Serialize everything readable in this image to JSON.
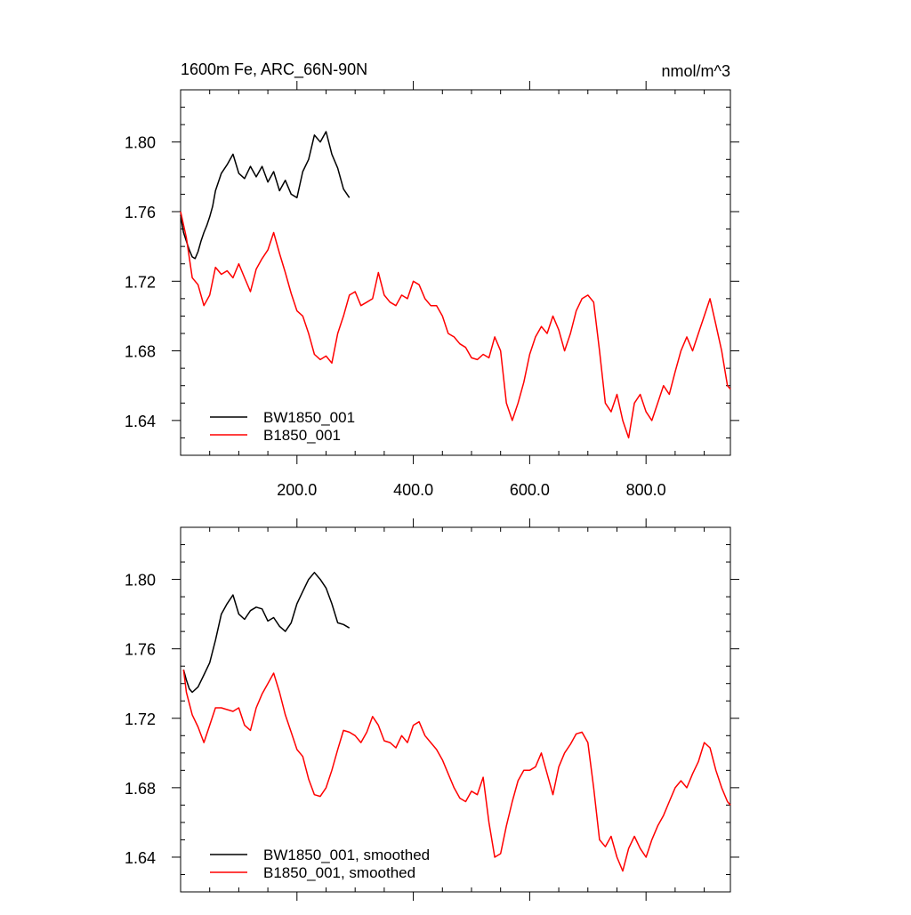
{
  "figure": {
    "title_left": "1600m Fe, ARC_66N-90N",
    "title_right": "nmol/m^3"
  },
  "colors": {
    "BW1850_001": "#000000",
    "B1850_001": "#ff0000"
  },
  "chart_data": [
    {
      "type": "line",
      "title": "1600m Fe, ARC_66N-90N",
      "units": "nmol/m^3",
      "xlabel": "",
      "ylabel": "",
      "xlim": [
        0,
        945
      ],
      "ylim": [
        1.62,
        1.83
      ],
      "xticks": [
        200,
        400,
        600,
        800
      ],
      "xtick_labels": [
        "200.0",
        "400.0",
        "600.0",
        "800.0"
      ],
      "yticks": [
        1.64,
        1.68,
        1.72,
        1.76,
        1.8
      ],
      "ytick_labels": [
        "1.64",
        "1.68",
        "1.72",
        "1.76",
        "1.80"
      ],
      "legend_position": "bottom-left",
      "grid": false,
      "series": [
        {
          "name": "BW1850_001",
          "color": "#000000",
          "x": [
            0,
            5,
            10,
            15,
            20,
            25,
            30,
            35,
            40,
            45,
            50,
            55,
            60,
            70,
            80,
            90,
            100,
            110,
            120,
            130,
            140,
            150,
            160,
            170,
            180,
            190,
            200,
            210,
            220,
            230,
            240,
            250,
            260,
            270,
            280,
            290
          ],
          "y": [
            1.758,
            1.748,
            1.743,
            1.738,
            1.734,
            1.733,
            1.737,
            1.743,
            1.748,
            1.752,
            1.757,
            1.763,
            1.772,
            1.782,
            1.787,
            1.793,
            1.782,
            1.779,
            1.786,
            1.78,
            1.786,
            1.777,
            1.783,
            1.772,
            1.778,
            1.77,
            1.768,
            1.783,
            1.79,
            1.804,
            1.8,
            1.806,
            1.793,
            1.785,
            1.773,
            1.768
          ]
        },
        {
          "name": "B1850_001",
          "color": "#ff0000",
          "x": [
            0,
            10,
            20,
            30,
            40,
            50,
            60,
            70,
            80,
            90,
            100,
            110,
            120,
            130,
            140,
            150,
            160,
            170,
            180,
            190,
            200,
            210,
            220,
            230,
            240,
            250,
            260,
            270,
            280,
            290,
            300,
            310,
            320,
            330,
            340,
            350,
            360,
            370,
            380,
            390,
            400,
            410,
            420,
            430,
            440,
            450,
            460,
            470,
            480,
            490,
            500,
            510,
            520,
            530,
            540,
            550,
            560,
            570,
            580,
            590,
            600,
            610,
            620,
            630,
            640,
            650,
            660,
            670,
            680,
            690,
            700,
            710,
            720,
            730,
            740,
            750,
            760,
            770,
            780,
            790,
            800,
            810,
            820,
            830,
            840,
            850,
            860,
            870,
            880,
            890,
            900,
            910,
            920,
            930,
            940,
            945
          ],
          "y": [
            1.76,
            1.745,
            1.722,
            1.718,
            1.706,
            1.712,
            1.728,
            1.724,
            1.726,
            1.722,
            1.73,
            1.722,
            1.714,
            1.727,
            1.733,
            1.738,
            1.748,
            1.736,
            1.725,
            1.713,
            1.703,
            1.7,
            1.69,
            1.678,
            1.675,
            1.677,
            1.673,
            1.69,
            1.7,
            1.712,
            1.714,
            1.706,
            1.708,
            1.71,
            1.725,
            1.712,
            1.708,
            1.706,
            1.712,
            1.71,
            1.72,
            1.718,
            1.71,
            1.706,
            1.706,
            1.7,
            1.69,
            1.688,
            1.684,
            1.682,
            1.676,
            1.675,
            1.678,
            1.676,
            1.688,
            1.68,
            1.65,
            1.64,
            1.65,
            1.662,
            1.678,
            1.688,
            1.694,
            1.69,
            1.7,
            1.692,
            1.68,
            1.69,
            1.703,
            1.71,
            1.712,
            1.708,
            1.68,
            1.65,
            1.645,
            1.655,
            1.64,
            1.63,
            1.65,
            1.655,
            1.645,
            1.64,
            1.65,
            1.66,
            1.655,
            1.668,
            1.68,
            1.688,
            1.68,
            1.69,
            1.7,
            1.71,
            1.695,
            1.68,
            1.66,
            1.658
          ]
        }
      ]
    },
    {
      "type": "line",
      "title": "",
      "xlabel": "",
      "ylabel": "",
      "xlim": [
        0,
        945
      ],
      "ylim": [
        1.62,
        1.83
      ],
      "xticks": [
        200,
        400,
        600,
        800
      ],
      "xtick_labels": [],
      "yticks": [
        1.64,
        1.68,
        1.72,
        1.76,
        1.8
      ],
      "ytick_labels": [
        "1.64",
        "1.68",
        "1.72",
        "1.76",
        "1.80"
      ],
      "legend_position": "bottom-left",
      "grid": false,
      "series": [
        {
          "name": "BW1850_001, smoothed",
          "color": "#000000",
          "x": [
            5,
            10,
            15,
            20,
            30,
            40,
            50,
            60,
            70,
            80,
            90,
            100,
            110,
            120,
            130,
            140,
            150,
            160,
            170,
            180,
            190,
            200,
            210,
            220,
            230,
            240,
            250,
            260,
            270,
            280,
            290
          ],
          "y": [
            1.748,
            1.742,
            1.737,
            1.735,
            1.738,
            1.745,
            1.752,
            1.765,
            1.78,
            1.786,
            1.791,
            1.78,
            1.777,
            1.782,
            1.784,
            1.783,
            1.776,
            1.778,
            1.773,
            1.77,
            1.775,
            1.786,
            1.793,
            1.8,
            1.804,
            1.8,
            1.795,
            1.786,
            1.775,
            1.774,
            1.772
          ]
        },
        {
          "name": "B1850_001, smoothed",
          "color": "#ff0000",
          "x": [
            5,
            10,
            20,
            30,
            40,
            50,
            60,
            70,
            80,
            90,
            100,
            110,
            120,
            130,
            140,
            150,
            160,
            170,
            180,
            190,
            200,
            210,
            220,
            230,
            240,
            250,
            260,
            270,
            280,
            290,
            300,
            310,
            320,
            330,
            340,
            350,
            360,
            370,
            380,
            390,
            400,
            410,
            420,
            430,
            440,
            450,
            460,
            470,
            480,
            490,
            500,
            510,
            520,
            530,
            540,
            550,
            560,
            570,
            580,
            590,
            600,
            610,
            620,
            630,
            640,
            650,
            660,
            670,
            680,
            690,
            700,
            710,
            720,
            730,
            740,
            750,
            760,
            770,
            780,
            790,
            800,
            810,
            820,
            830,
            840,
            850,
            860,
            870,
            880,
            890,
            900,
            910,
            920,
            930,
            940,
            945
          ],
          "y": [
            1.748,
            1.735,
            1.722,
            1.715,
            1.706,
            1.716,
            1.726,
            1.726,
            1.725,
            1.724,
            1.726,
            1.716,
            1.713,
            1.726,
            1.734,
            1.74,
            1.746,
            1.735,
            1.722,
            1.712,
            1.702,
            1.698,
            1.685,
            1.676,
            1.675,
            1.68,
            1.69,
            1.702,
            1.713,
            1.712,
            1.71,
            1.706,
            1.712,
            1.721,
            1.716,
            1.707,
            1.706,
            1.703,
            1.71,
            1.706,
            1.716,
            1.718,
            1.71,
            1.706,
            1.702,
            1.696,
            1.688,
            1.68,
            1.674,
            1.672,
            1.678,
            1.676,
            1.686,
            1.66,
            1.64,
            1.642,
            1.658,
            1.672,
            1.684,
            1.69,
            1.69,
            1.692,
            1.7,
            1.688,
            1.676,
            1.692,
            1.7,
            1.705,
            1.711,
            1.712,
            1.706,
            1.68,
            1.65,
            1.646,
            1.652,
            1.64,
            1.632,
            1.645,
            1.652,
            1.645,
            1.64,
            1.65,
            1.658,
            1.664,
            1.672,
            1.68,
            1.684,
            1.68,
            1.688,
            1.695,
            1.706,
            1.703,
            1.69,
            1.68,
            1.672,
            1.67
          ]
        }
      ]
    }
  ]
}
